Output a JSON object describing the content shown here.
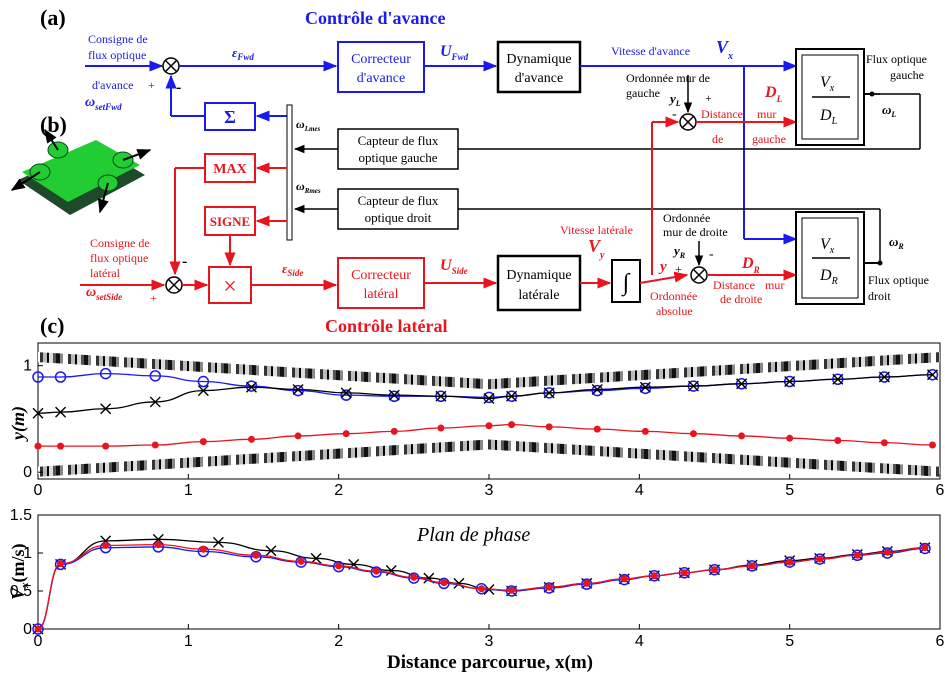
{
  "panels": {
    "a": "(a)",
    "b": "(b)",
    "c": "(c)"
  },
  "titles": {
    "forward": "Contrôle d'avance",
    "lateral": "Contrôle latéral"
  },
  "colors": {
    "blue": "#1a1aee",
    "red": "#e8141e",
    "black": "#000000",
    "green": "#22cc33",
    "robot_dark": "#1e4a2a"
  },
  "forward_loop": {
    "setpoint_l1": "Consigne de",
    "setpoint_l2": "flux optique",
    "setpoint_l3": "d'avance",
    "setpoint_sym": "ω",
    "setpoint_sub": "setFwd",
    "plus": "+",
    "minus": "-",
    "error_sym": "ε",
    "error_sub": "Fwd",
    "corrector_l1": "Correcteur",
    "corrector_l2": "d'avance",
    "u_sym": "U",
    "u_sub": "Fwd",
    "dynamics_l1": "Dynamique",
    "dynamics_l2": "d'avance",
    "speed_label": "Vitesse d'avance",
    "speed_sym": "V",
    "speed_sub": "x",
    "sigma": "Σ"
  },
  "left_wall": {
    "ord_l1": "Ordonnée mur de",
    "ord_l2": "gauche",
    "y_sym": "y",
    "y_sub": "L",
    "minus": "-",
    "plus": "+",
    "d_sym": "D",
    "d_sub": "L",
    "dist_l1": "Distance",
    "dist_l2": "mur",
    "dist_l3": "de",
    "dist_l4": "gauche",
    "frac_num": "V",
    "frac_num_sub": "x",
    "frac_den": "D",
    "frac_den_sub": "L",
    "out_l1": "Flux optique",
    "out_l2": "gauche",
    "omega": "ω",
    "omega_sub": "L"
  },
  "sensors": {
    "left_l1": "Capteur de flux",
    "left_l2": "optique gauche",
    "right_l1": "Capteur de flux",
    "right_l2": "optique droit",
    "omega": "ω",
    "left_sub": "Lmes",
    "right_sub": "Rmes"
  },
  "lateral_loop": {
    "max": "MAX",
    "sign": "SIGNE",
    "times": "×",
    "setpoint_l1": "Consigne de",
    "setpoint_l2": "flux optique",
    "setpoint_l3": "latéral",
    "setpoint_sym": "ω",
    "setpoint_sub": "setSide",
    "minus": "-",
    "plus": "+",
    "error_sym": "ε",
    "error_sub": "Side",
    "corrector_l1": "Correcteur",
    "corrector_l2": "latéral",
    "u_sym": "U",
    "u_sub": "Side",
    "dynamics_l1": "Dynamique",
    "dynamics_l2": "latérale",
    "speed_label": "Vitesse latérale",
    "speed_sym": "V",
    "speed_sub": "y",
    "integral": "∫",
    "y_label": "y",
    "abs_l1": "Ordonnée",
    "abs_l2": "absolue"
  },
  "right_wall": {
    "ord_l1": "Ordonnée",
    "ord_l2": "mur de droite",
    "y_sym": "y",
    "y_sub": "R",
    "minus": "-",
    "plus": "+",
    "d_sym": "D",
    "d_sub": "R",
    "dist_l1": "Distance",
    "dist_l2": "mur",
    "dist_l3": "de droite",
    "frac_num": "V",
    "frac_num_sub": "x",
    "frac_den": "D",
    "frac_den_sub": "R",
    "out_l1": "Flux optique",
    "out_l2": "droit",
    "omega": "ω",
    "omega_sub": "R"
  },
  "chart_data": [
    {
      "type": "line",
      "ylabel": "y(m)",
      "xlim": [
        0,
        6
      ],
      "ylim": [
        0,
        1.2
      ],
      "xticks": [
        "0",
        "1",
        "2",
        "3",
        "4",
        "5",
        "6"
      ],
      "yticks": [
        "0",
        "1"
      ],
      "walls": {
        "top": [
          [
            0,
            1.12
          ],
          [
            3,
            0.88
          ],
          [
            6,
            1.12
          ]
        ],
        "bottom": [
          [
            0,
            0.02
          ],
          [
            3,
            0.26
          ],
          [
            6,
            0.02
          ]
        ]
      },
      "series": [
        {
          "marker": "circle",
          "color": "#1a1aee",
          "x": [
            0,
            0.15,
            0.45,
            0.78,
            1.1,
            1.42,
            1.73,
            2.05,
            2.37,
            2.68,
            3.0,
            3.15,
            3.4,
            3.72,
            4.04,
            4.36,
            4.68,
            5.0,
            5.32,
            5.63,
            5.95
          ],
          "y": [
            0.9,
            0.9,
            0.93,
            0.91,
            0.86,
            0.82,
            0.78,
            0.74,
            0.73,
            0.73,
            0.72,
            0.73,
            0.76,
            0.78,
            0.8,
            0.82,
            0.84,
            0.86,
            0.88,
            0.9,
            0.92
          ]
        },
        {
          "marker": "x",
          "color": "#000000",
          "x": [
            0,
            0.15,
            0.45,
            0.78,
            1.1,
            1.42,
            1.73,
            2.05,
            2.37,
            2.68,
            3.0,
            3.15,
            3.4,
            3.72,
            4.04,
            4.36,
            4.68,
            5.0,
            5.32,
            5.63,
            5.95
          ],
          "y": [
            0.58,
            0.59,
            0.62,
            0.68,
            0.78,
            0.81,
            0.79,
            0.76,
            0.74,
            0.73,
            0.71,
            0.73,
            0.76,
            0.79,
            0.81,
            0.82,
            0.84,
            0.86,
            0.88,
            0.9,
            0.92
          ]
        },
        {
          "marker": "dot",
          "color": "#e8141e",
          "x": [
            0,
            0.15,
            0.45,
            0.78,
            1.1,
            1.42,
            1.73,
            2.05,
            2.37,
            2.68,
            3.0,
            3.15,
            3.4,
            3.72,
            4.04,
            4.36,
            4.68,
            5.0,
            5.32,
            5.63,
            5.95
          ],
          "y": [
            0.29,
            0.29,
            0.29,
            0.3,
            0.33,
            0.35,
            0.38,
            0.4,
            0.42,
            0.45,
            0.47,
            0.48,
            0.46,
            0.44,
            0.42,
            0.4,
            0.38,
            0.36,
            0.34,
            0.32,
            0.3
          ]
        }
      ]
    },
    {
      "type": "line",
      "title": "Plan de phase",
      "xlabel": "Distance parcourue, x(m)",
      "ylabel": "V",
      "ylabel_sub": "x",
      "ylabel_unit": "(m/s)",
      "xlim": [
        0,
        6
      ],
      "ylim": [
        0,
        1.5
      ],
      "xticks": [
        "0",
        "1",
        "2",
        "3",
        "4",
        "5",
        "6"
      ],
      "yticks": [
        "0",
        "0.5",
        "1",
        "1.5"
      ],
      "series": [
        {
          "marker": "x",
          "color": "#000000",
          "x": [
            0,
            0.15,
            0.45,
            0.8,
            1.2,
            1.55,
            1.85,
            2.1,
            2.35,
            2.6,
            2.8,
            3.0,
            3.15,
            3.4,
            3.65,
            3.9,
            4.1,
            4.3,
            4.5,
            4.75,
            5.0,
            5.2,
            5.45,
            5.65,
            5.9
          ],
          "y": [
            0,
            0.85,
            1.16,
            1.18,
            1.14,
            1.03,
            0.93,
            0.85,
            0.77,
            0.67,
            0.6,
            0.52,
            0.5,
            0.55,
            0.6,
            0.66,
            0.7,
            0.74,
            0.78,
            0.84,
            0.9,
            0.93,
            0.98,
            1.02,
            1.07
          ]
        },
        {
          "marker": "circle",
          "color": "#1a1aee",
          "x": [
            0,
            0.15,
            0.45,
            0.8,
            1.1,
            1.45,
            1.75,
            2.0,
            2.25,
            2.5,
            2.7,
            2.95,
            3.15,
            3.4,
            3.65,
            3.9,
            4.1,
            4.3,
            4.5,
            4.75,
            5.0,
            5.2,
            5.45,
            5.65,
            5.9
          ],
          "y": [
            0,
            0.85,
            1.07,
            1.08,
            1.02,
            0.95,
            0.88,
            0.82,
            0.75,
            0.67,
            0.6,
            0.53,
            0.5,
            0.54,
            0.59,
            0.65,
            0.7,
            0.74,
            0.78,
            0.83,
            0.88,
            0.92,
            0.97,
            1.0,
            1.06
          ]
        },
        {
          "marker": "none",
          "color": "#e8141e",
          "x": [
            0,
            0.15,
            0.45,
            0.8,
            1.1,
            1.45,
            1.75,
            2.0,
            2.25,
            2.5,
            2.7,
            2.95,
            3.15,
            3.4,
            3.65,
            3.9,
            4.1,
            4.3,
            4.5,
            4.75,
            5.0,
            5.2,
            5.45,
            5.65,
            5.9
          ],
          "y": [
            0,
            0.86,
            1.1,
            1.11,
            1.05,
            0.97,
            0.89,
            0.83,
            0.76,
            0.68,
            0.61,
            0.53,
            0.51,
            0.55,
            0.6,
            0.66,
            0.7,
            0.74,
            0.78,
            0.83,
            0.88,
            0.92,
            0.97,
            1.01,
            1.07
          ]
        }
      ]
    }
  ]
}
